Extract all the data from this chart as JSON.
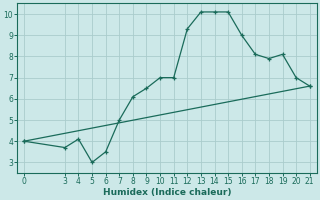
{
  "xlabel": "Humidex (Indice chaleur)",
  "bg_color": "#cce8e8",
  "line_color": "#1a6b5a",
  "grid_color": "#aacccc",
  "xlim": [
    -0.5,
    21.5
  ],
  "ylim": [
    2.5,
    10.5
  ],
  "xticks": [
    0,
    3,
    4,
    5,
    6,
    7,
    8,
    9,
    10,
    11,
    12,
    13,
    14,
    15,
    16,
    17,
    18,
    19,
    20,
    21
  ],
  "yticks": [
    3,
    4,
    5,
    6,
    7,
    8,
    9,
    10
  ],
  "curve1_x": [
    0,
    3,
    4,
    5,
    6,
    7,
    8,
    9,
    10,
    11,
    12,
    13,
    14,
    15,
    16,
    17,
    18,
    19,
    20,
    21
  ],
  "curve1_y": [
    4.0,
    3.7,
    4.1,
    3.0,
    3.5,
    5.0,
    6.1,
    6.5,
    7.0,
    7.0,
    9.3,
    10.1,
    10.1,
    10.1,
    9.0,
    8.1,
    7.9,
    8.1,
    7.0,
    6.6
  ],
  "curve2_x": [
    0,
    21
  ],
  "curve2_y": [
    4.0,
    6.6
  ],
  "tick_fontsize": 5.5,
  "xlabel_fontsize": 6.5,
  "marker": "+"
}
